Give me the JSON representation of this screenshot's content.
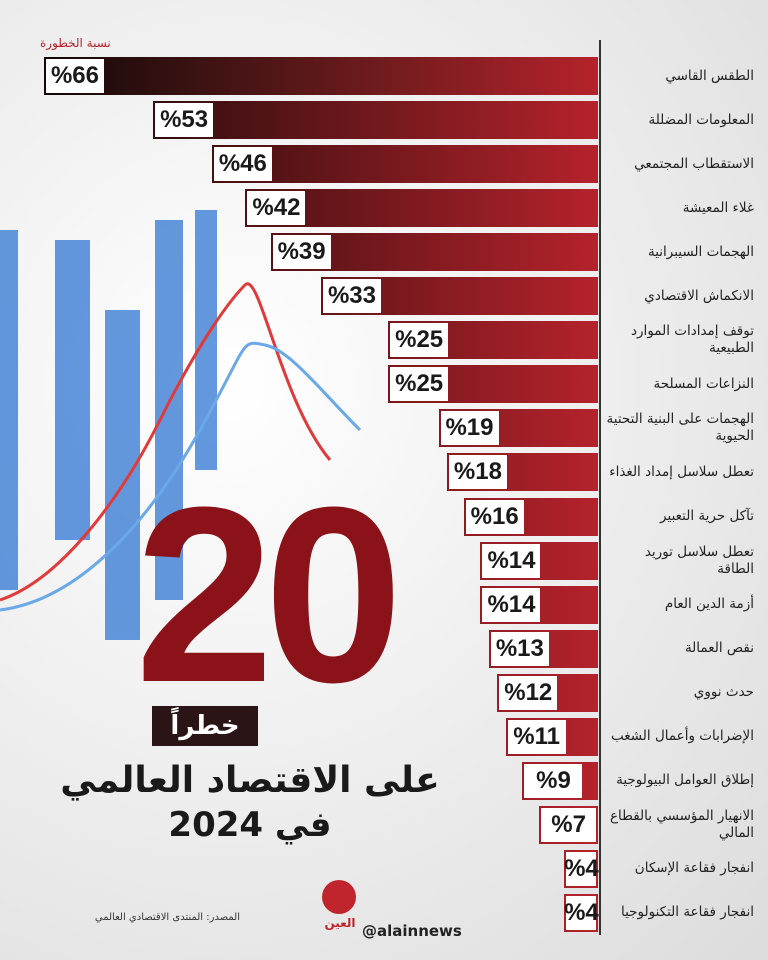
{
  "chart_data": {
    "type": "bar",
    "orientation": "horizontal",
    "axis_label": "نسبة الخطورة",
    "big_number": "20",
    "big_word": "خطراً",
    "title": "على الاقتصاد العالمي",
    "subtitle": "في 2024",
    "source": "المصدر: المنتدى الاقتصادي العالمي",
    "handle": "@alainnews",
    "logo": "العين",
    "color": "#b5222b",
    "categories": [
      "الطقس القاسي",
      "المعلومات المضللة",
      "الاستقطاب المجتمعي",
      "غلاء المعيشة",
      "الهجمات السيبرانية",
      "الانكماش الاقتصادي",
      "توقف إمدادات الموارد الطبيعية",
      "النزاعات المسلحة",
      "الهجمات على البنية التحتية الحيوية",
      "تعطل سلاسل إمداد الغذاء",
      "تآكل حرية التعبير",
      "تعطل سلاسل توريد الطاقة",
      "أزمة الدين العام",
      "نقص العمالة",
      "حدث نووي",
      "الإضرابات وأعمال الشغب",
      "إطلاق العوامل البيولوجية",
      "الانهيار المؤسسي بالقطاع المالي",
      "انفجار فقاعة الإسكان",
      "انفجار فقاعة التكنولوجيا"
    ],
    "values": [
      66,
      53,
      46,
      42,
      39,
      33,
      25,
      25,
      19,
      18,
      16,
      14,
      14,
      13,
      12,
      11,
      9,
      7,
      4,
      4
    ],
    "value_labels": [
      "%66",
      "%53",
      "%46",
      "%42",
      "%39",
      "%33",
      "%25",
      "%25",
      "%19",
      "%18",
      "%16",
      "%14",
      "%14",
      "%13",
      "%12",
      "%11",
      "%9",
      "%7",
      "%4",
      "%4"
    ]
  }
}
